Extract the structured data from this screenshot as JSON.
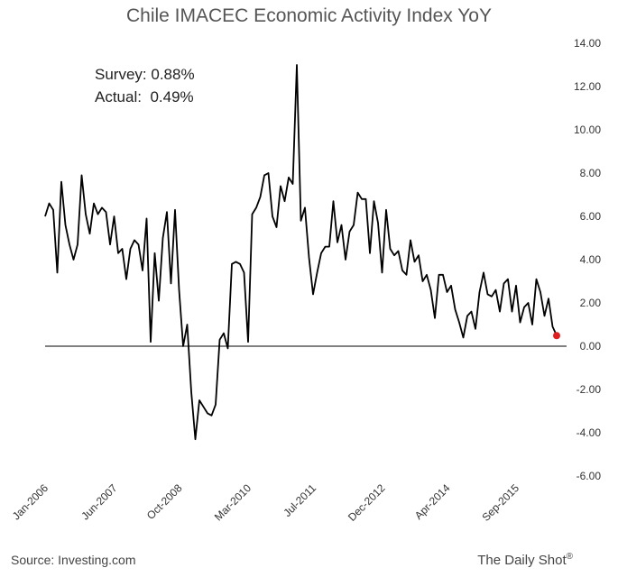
{
  "chart_data": {
    "type": "line",
    "title": "Chile IMACEC Economic Activity Index YoY",
    "xlabel": "",
    "ylabel": "",
    "ylim": [
      -6,
      14
    ],
    "y_ticks": [
      -6,
      -4,
      -2,
      0,
      2,
      4,
      6,
      8,
      10,
      12,
      14
    ],
    "y_tick_labels": [
      "-6.00",
      "-4.00",
      "-2.00",
      "0.00",
      "2.00",
      "4.00",
      "6.00",
      "8.00",
      "10.00",
      "12.00",
      "14.00"
    ],
    "x_tick_labels": [
      "Jan-2006",
      "Jun-2007",
      "Oct-2008",
      "Mar-2010",
      "Jul-2011",
      "Dec-2012",
      "Apr-2014",
      "Sep-2015"
    ],
    "x_tick_index": [
      0,
      17,
      33,
      50,
      66,
      83,
      99,
      116
    ],
    "grid": false,
    "series": [
      {
        "color": "#000000",
        "values": [
          6.0,
          6.6,
          6.3,
          3.4,
          7.6,
          5.6,
          4.7,
          4.0,
          4.7,
          7.9,
          6.1,
          5.2,
          6.6,
          6.1,
          6.4,
          6.2,
          4.7,
          6.0,
          4.3,
          4.5,
          3.1,
          4.5,
          4.9,
          4.7,
          3.5,
          5.9,
          0.2,
          4.3,
          2.1,
          5.0,
          6.2,
          2.9,
          6.3,
          2.6,
          0.0,
          1.0,
          -2.1,
          -4.3,
          -2.5,
          -2.8,
          -3.1,
          -3.2,
          -2.7,
          0.3,
          0.6,
          -0.1,
          3.8,
          3.9,
          3.8,
          3.4,
          0.2,
          6.1,
          6.4,
          6.9,
          7.9,
          8.0,
          6.0,
          5.5,
          7.4,
          6.7,
          7.8,
          7.5,
          13.0,
          5.8,
          6.4,
          4.1,
          2.4,
          3.4,
          4.3,
          4.6,
          4.6,
          6.7,
          4.8,
          5.6,
          4.0,
          5.3,
          5.6,
          7.1,
          6.8,
          6.8,
          4.3,
          6.7,
          5.7,
          3.4,
          6.3,
          4.5,
          4.2,
          4.4,
          3.5,
          3.3,
          4.9,
          3.9,
          4.2,
          3.0,
          3.3,
          2.6,
          1.3,
          3.3,
          3.3,
          2.5,
          2.8,
          1.7,
          1.1,
          0.4,
          1.4,
          1.6,
          0.8,
          2.5,
          3.4,
          2.4,
          2.3,
          2.6,
          1.6,
          2.9,
          3.1,
          1.6,
          2.8,
          1.1,
          1.8,
          2.0,
          1.0,
          3.1,
          2.5,
          1.4,
          2.2,
          0.9,
          0.5
        ]
      }
    ],
    "highlight_point": {
      "index": 126,
      "value": 0.49,
      "color": "#e02020"
    },
    "annotations": [
      {
        "label": "Survey:",
        "value": "0.88%"
      },
      {
        "label": "Actual:",
        "value": "0.49%"
      }
    ]
  },
  "footer": {
    "source": "Source: Investing.com",
    "credit": "The Daily Shot",
    "credit_mark": "®"
  }
}
